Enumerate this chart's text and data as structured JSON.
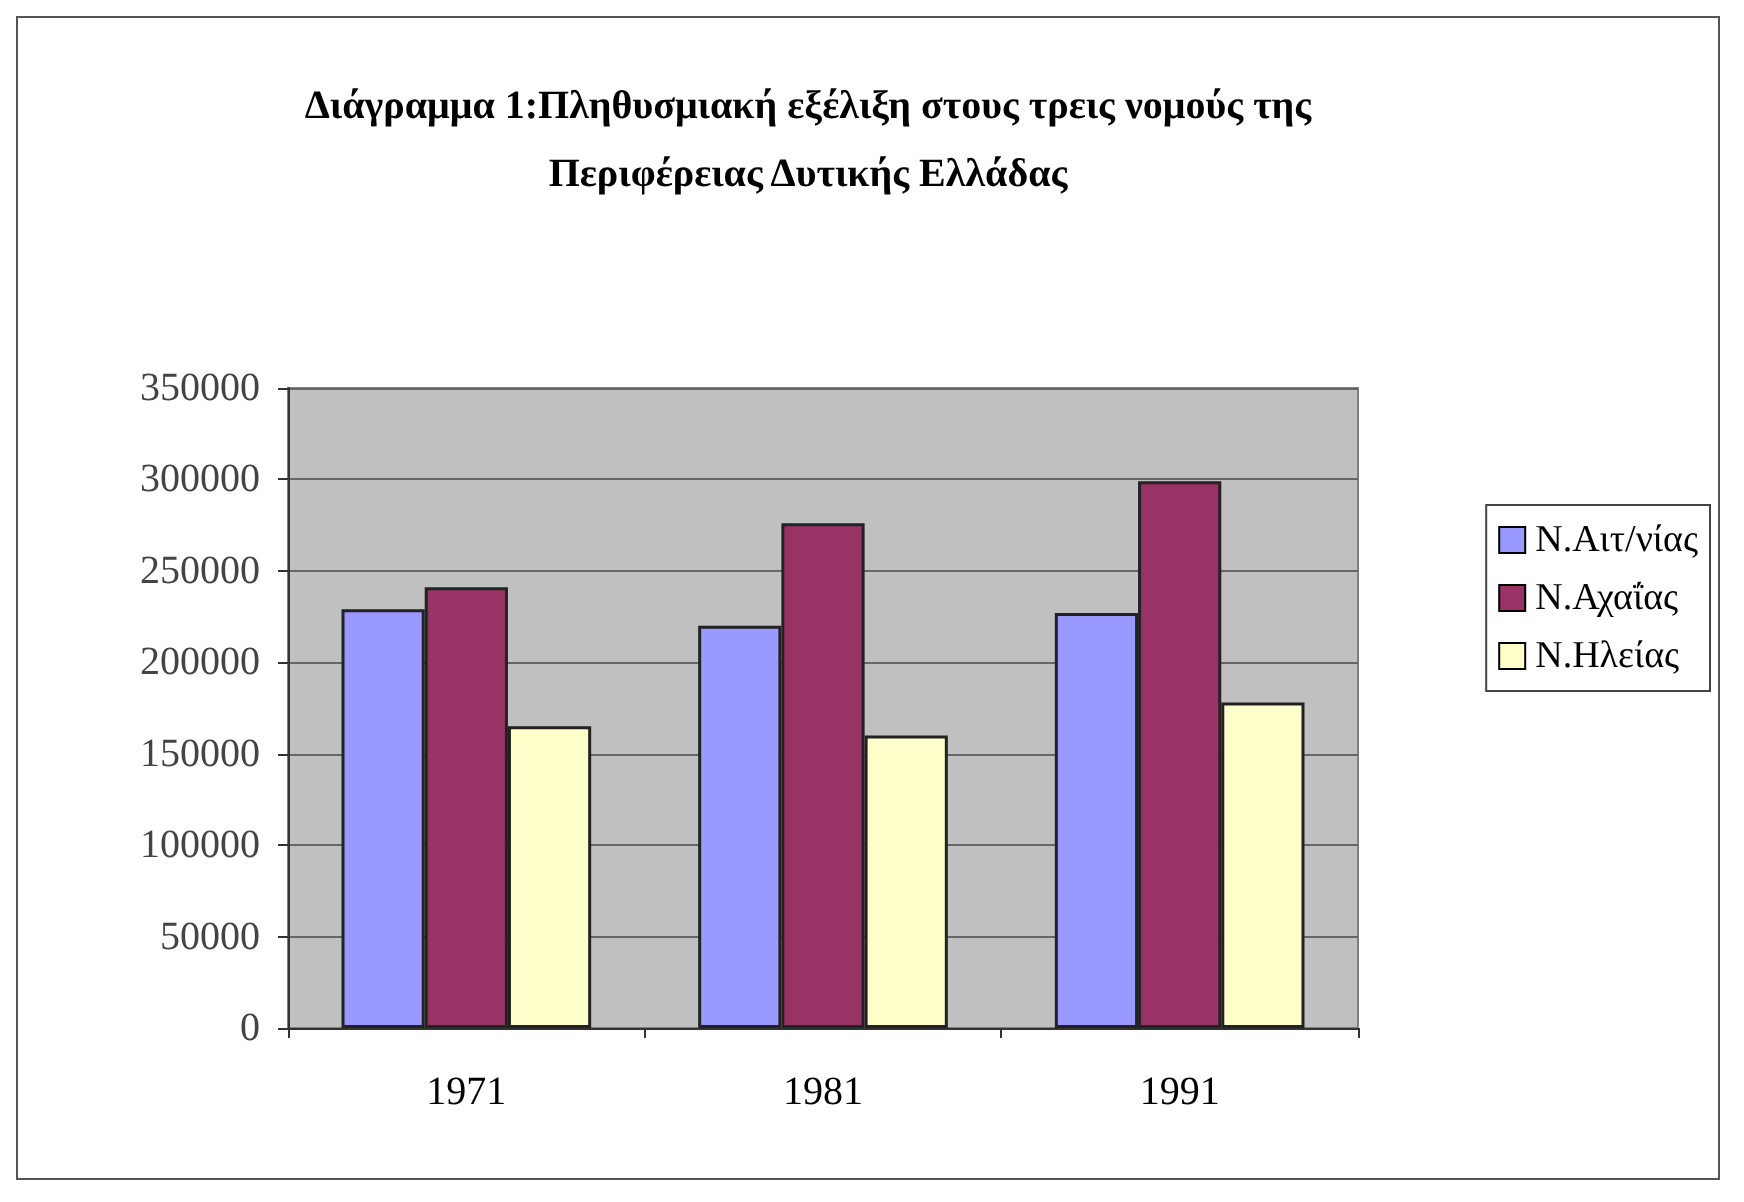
{
  "chart_data": {
    "type": "bar",
    "title": "Διάγραμμα 1:Πληθυσμιακή εξέλιξη στους τρεις νομούς της\nΠεριφέρειας Δυτικής Ελλάδας",
    "categories": [
      "1971",
      "1981",
      "1991"
    ],
    "series": [
      {
        "name": "Ν.Αιτ/νίας",
        "color": "#9999ff",
        "values": [
          229000,
          220000,
          227000
        ]
      },
      {
        "name": "Ν.Αχαΐας",
        "color": "#993366",
        "values": [
          241000,
          276000,
          299000
        ]
      },
      {
        "name": "Ν.Ηλείας",
        "color": "#ffffcc",
        "values": [
          165000,
          160000,
          178000
        ]
      }
    ],
    "ylim": [
      0,
      350000
    ],
    "yticks": [
      0,
      50000,
      100000,
      150000,
      200000,
      250000,
      300000,
      350000
    ],
    "grid": "y",
    "legend": "right"
  }
}
